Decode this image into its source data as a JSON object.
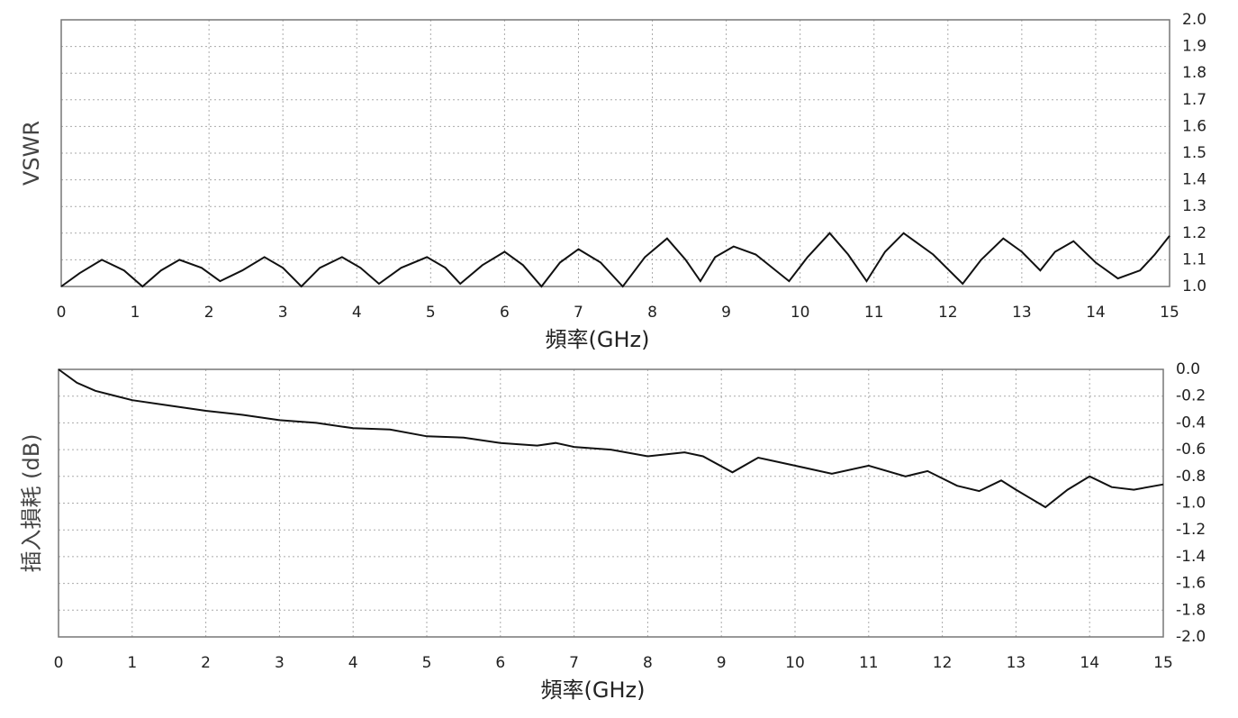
{
  "chart_data": [
    {
      "type": "line",
      "ylabel": "VSWR",
      "xlabel": "頻率(GHz)",
      "xlim": [
        0,
        15
      ],
      "xticks": [
        0,
        1,
        2,
        3,
        4,
        5,
        6,
        7,
        8,
        9,
        10,
        11,
        12,
        13,
        14,
        15
      ],
      "ylim": [
        1.0,
        2.0
      ],
      "yticks": [
        {
          "value": 1,
          "label": "1.0"
        },
        1.1,
        1.2,
        1.3,
        1.4,
        1.5,
        1.6,
        1.7,
        1.8,
        1.9,
        {
          "value": 2,
          "label": "2.0"
        }
      ],
      "grid": true,
      "color": "#111111",
      "x": [
        0,
        0.25,
        0.55,
        0.85,
        1.1,
        1.35,
        1.6,
        1.9,
        2.15,
        2.45,
        2.75,
        3.0,
        3.25,
        3.5,
        3.8,
        4.05,
        4.3,
        4.6,
        4.95,
        5.2,
        5.4,
        5.7,
        6.0,
        6.25,
        6.5,
        6.75,
        7.0,
        7.3,
        7.6,
        7.9,
        8.2,
        8.45,
        8.65,
        8.85,
        9.1,
        9.4,
        9.85,
        10.1,
        10.4,
        10.65,
        10.9,
        11.15,
        11.4,
        11.8,
        12.2,
        12.45,
        12.75,
        13.0,
        13.25,
        13.45,
        13.7,
        14.0,
        14.3,
        14.6,
        14.8,
        15.0
      ],
      "values": [
        1.0,
        1.05,
        1.1,
        1.06,
        1.0,
        1.06,
        1.1,
        1.07,
        1.02,
        1.06,
        1.11,
        1.07,
        1.0,
        1.07,
        1.11,
        1.07,
        1.01,
        1.07,
        1.11,
        1.07,
        1.01,
        1.08,
        1.13,
        1.08,
        1.0,
        1.09,
        1.14,
        1.09,
        1.0,
        1.11,
        1.18,
        1.1,
        1.02,
        1.11,
        1.15,
        1.12,
        1.02,
        1.11,
        1.2,
        1.12,
        1.02,
        1.13,
        1.2,
        1.12,
        1.01,
        1.1,
        1.18,
        1.13,
        1.06,
        1.13,
        1.17,
        1.09,
        1.03,
        1.06,
        1.12,
        1.19
      ]
    },
    {
      "type": "line",
      "ylabel": "插入損耗 (dB)",
      "xlabel": "頻率(GHz)",
      "xlim": [
        0,
        15
      ],
      "xticks": [
        0,
        1,
        2,
        3,
        4,
        5,
        6,
        7,
        8,
        9,
        10,
        11,
        12,
        13,
        14,
        15
      ],
      "ylim": [
        -2.0,
        0.0
      ],
      "yticks": [
        {
          "value": 0,
          "label": "0.0"
        },
        -0.2,
        -0.4,
        -0.6,
        -0.8,
        {
          "value": -1,
          "label": "-1.0"
        },
        -1.2,
        -1.4,
        -1.6,
        -1.8,
        {
          "value": -2,
          "label": "-2.0"
        }
      ],
      "grid": true,
      "color": "#111111",
      "x": [
        0,
        0.25,
        0.5,
        1,
        1.5,
        2,
        2.5,
        3,
        3.5,
        4,
        4.5,
        5,
        5.5,
        6,
        6.5,
        6.75,
        7,
        7.5,
        8,
        8.5,
        8.75,
        9.15,
        9.5,
        10,
        10.5,
        11,
        11.5,
        11.8,
        12.2,
        12.5,
        12.8,
        13,
        13.4,
        13.7,
        14,
        14.3,
        14.6,
        15
      ],
      "values": [
        0.0,
        -0.1,
        -0.16,
        -0.23,
        -0.27,
        -0.31,
        -0.34,
        -0.38,
        -0.4,
        -0.44,
        -0.45,
        -0.5,
        -0.51,
        -0.55,
        -0.57,
        -0.55,
        -0.58,
        -0.6,
        -0.65,
        -0.62,
        -0.65,
        -0.77,
        -0.66,
        -0.72,
        -0.78,
        -0.72,
        -0.8,
        -0.76,
        -0.87,
        -0.91,
        -0.83,
        -0.9,
        -1.03,
        -0.9,
        -0.8,
        -0.88,
        -0.9,
        -0.86
      ]
    }
  ]
}
